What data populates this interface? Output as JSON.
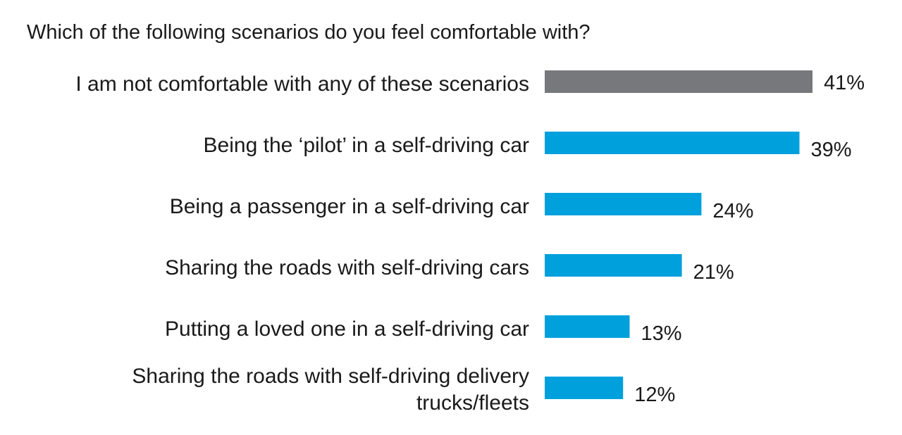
{
  "chart_data": {
    "type": "bar",
    "orientation": "horizontal",
    "title": "Which of the following scenarios do you feel comfortable with?",
    "categories": [
      "I am not comfortable with any of these scenarios",
      "Being the ‘pilot’ in a self-driving car",
      "Being a passenger in a self-driving car",
      "Sharing the roads with self-driving cars",
      "Putting a loved one in a self-driving car",
      "Sharing the roads with self-driving delivery trucks/fleets"
    ],
    "category_lines": [
      [
        "I am not comfortable with any of these scenarios"
      ],
      [
        "Being the ‘pilot’ in a self-driving car"
      ],
      [
        "Being a passenger in a self-driving car"
      ],
      [
        "Sharing the roads with self-driving cars"
      ],
      [
        "Putting a loved one in a self-driving car"
      ],
      [
        "Sharing the roads with self-driving delivery",
        "trucks/fleets"
      ]
    ],
    "values": [
      41,
      39,
      24,
      21,
      13,
      12
    ],
    "value_labels": [
      "41%",
      "39%",
      "24%",
      "21%",
      "13%",
      "12%"
    ],
    "unit": "%",
    "colors": [
      "#77787b",
      "#00a0dc",
      "#00a0dc",
      "#00a0dc",
      "#00a0dc",
      "#00a0dc"
    ],
    "grid": false,
    "legend": "none",
    "xlim": [
      0,
      41
    ]
  }
}
